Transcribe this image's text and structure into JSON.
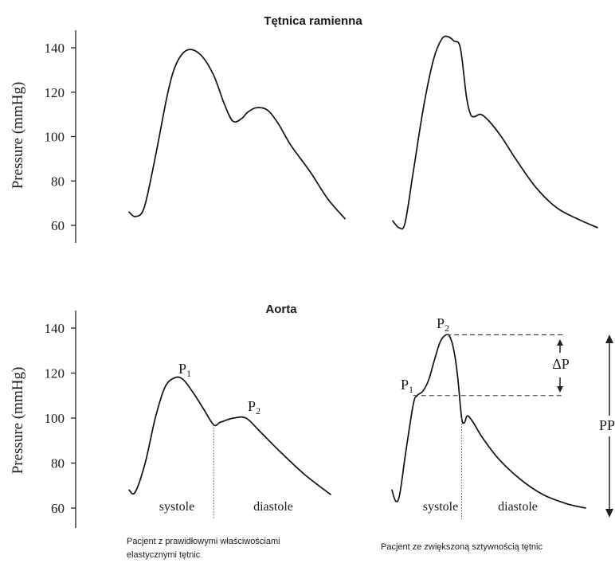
{
  "chart_data": [
    {
      "type": "line",
      "title": "Tętnica ramienna",
      "ylabel": "Pressure (mmHg)",
      "ylim": [
        55,
        145
      ],
      "yticks": [
        60,
        80,
        100,
        120,
        140
      ],
      "grid": false,
      "series": [
        {
          "x": [
            0.0,
            0.03,
            0.07,
            0.12,
            0.18,
            0.22,
            0.27,
            0.33,
            0.39,
            0.44,
            0.48,
            0.52,
            0.55,
            0.59,
            0.64,
            0.69,
            0.75,
            0.84,
            0.92,
            1.0
          ],
          "values": [
            66,
            64,
            68,
            90,
            120,
            133,
            139,
            137,
            128,
            115,
            107,
            108,
            111,
            113,
            112,
            106,
            96,
            84,
            72,
            63
          ]
        }
      ]
    },
    {
      "type": "line",
      "ylim": [
        55,
        145
      ],
      "grid": false,
      "series": [
        {
          "x": [
            0.0,
            0.03,
            0.06,
            0.1,
            0.15,
            0.2,
            0.24,
            0.27,
            0.3,
            0.33,
            0.36,
            0.38,
            0.4,
            0.43,
            0.47,
            0.53,
            0.6,
            0.7,
            0.8,
            0.9,
            1.0
          ],
          "values": [
            62,
            59,
            61,
            84,
            113,
            135,
            144,
            145,
            143,
            140,
            118,
            110,
            109,
            110,
            107,
            100,
            90,
            77,
            68,
            63,
            59
          ]
        }
      ]
    },
    {
      "type": "line",
      "title": "Aorta",
      "ylabel": "Pressure (mmHg)",
      "ylim": [
        55,
        145
      ],
      "yticks": [
        60,
        80,
        100,
        120,
        140
      ],
      "grid": false,
      "series": [
        {
          "x": [
            0.0,
            0.03,
            0.08,
            0.13,
            0.18,
            0.23,
            0.27,
            0.32,
            0.37,
            0.42,
            0.45,
            0.48,
            0.52,
            0.58,
            0.65,
            0.75,
            0.87,
            1.0
          ],
          "values": [
            68,
            67,
            80,
            100,
            114,
            118,
            117,
            111,
            104,
            97,
            98,
            99,
            100,
            100,
            94,
            85,
            75,
            66
          ]
        }
      ],
      "annotations": [
        {
          "label": "P",
          "sub": "1",
          "x": 0.23,
          "y": 118
        },
        {
          "label": "P",
          "sub": "2",
          "x": 0.52,
          "y": 100
        }
      ],
      "divider_x": 0.42,
      "phase_labels": [
        "systole",
        "diastole"
      ]
    },
    {
      "type": "line",
      "grid": false,
      "ylim": [
        55,
        145
      ],
      "series": [
        {
          "x": [
            0.0,
            0.02,
            0.04,
            0.07,
            0.11,
            0.13,
            0.16,
            0.19,
            0.22,
            0.25,
            0.28,
            0.3,
            0.32,
            0.34,
            0.36,
            0.375,
            0.39,
            0.42,
            0.47,
            0.55,
            0.66,
            0.78,
            0.9,
            1.0
          ],
          "values": [
            68,
            63,
            66,
            84,
            106,
            110,
            112,
            117,
            126,
            134,
            137,
            136,
            130,
            118,
            100,
            98,
            101,
            98,
            91,
            82,
            73,
            66,
            62,
            60
          ]
        }
      ],
      "annotations": [
        {
          "label": "P",
          "sub": "2",
          "x": 0.28,
          "y": 137
        },
        {
          "label": "P",
          "sub": "1",
          "x": 0.11,
          "y": 110
        },
        {
          "label": "ΔP"
        },
        {
          "label": "PP"
        }
      ],
      "reference_levels": [
        137,
        110
      ],
      "divider_x": 0.36,
      "phase_labels": [
        "systole",
        "diastole"
      ]
    }
  ],
  "captions": {
    "left_line1": "Pacjent z prawidłowymi właściwościami",
    "left_line2": "elastycznymi tętnic",
    "right": "Pacjent ze zwiększoną sztywnością tętnic"
  }
}
